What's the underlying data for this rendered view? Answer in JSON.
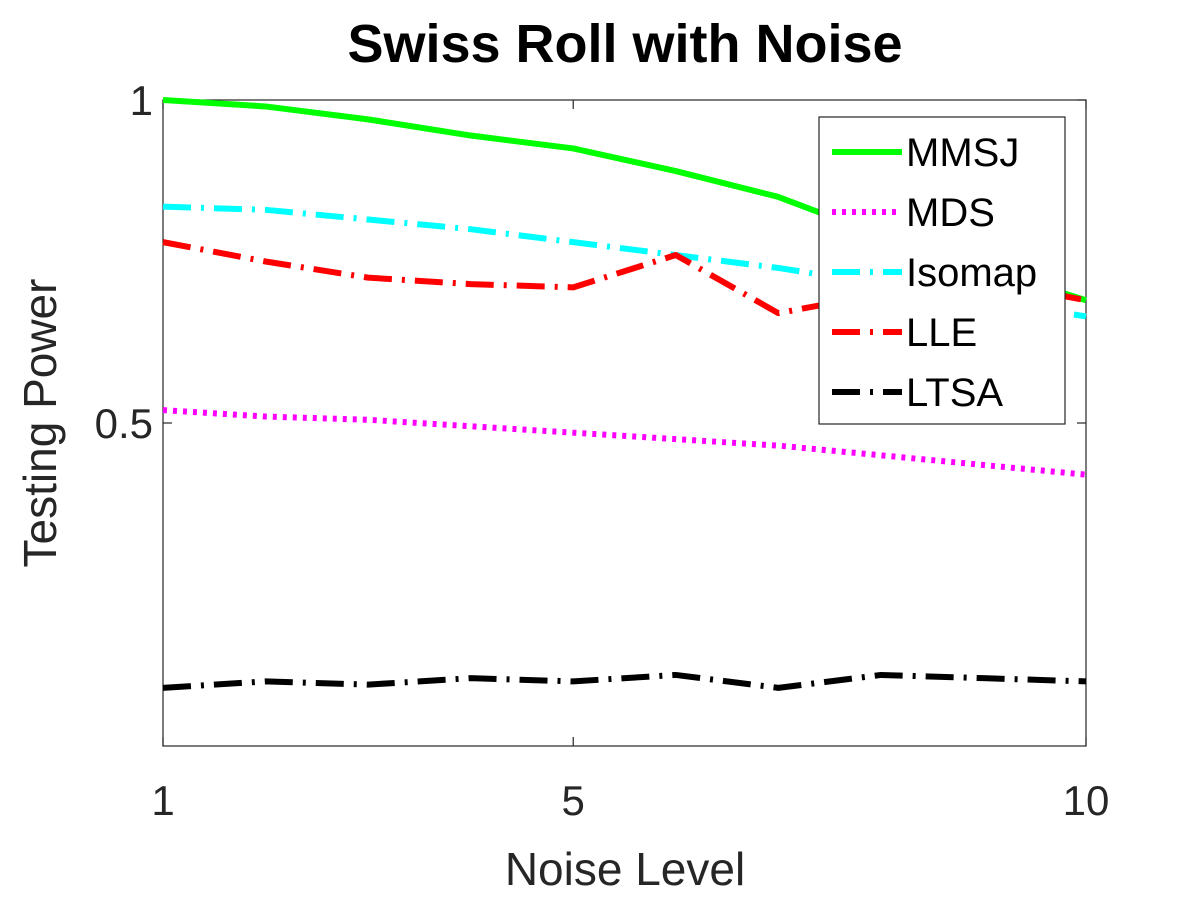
{
  "chart_data": {
    "type": "line",
    "title": "Swiss Roll with Noise",
    "xlabel": "Noise Level",
    "ylabel": "Testing Power",
    "xlim": [
      1,
      10
    ],
    "ylim": [
      0.0,
      1.0
    ],
    "xticks": [
      1,
      5,
      10
    ],
    "xtick_labels": [
      "1",
      "5",
      "10"
    ],
    "yticks": [
      0.5,
      1.0
    ],
    "ytick_labels": [
      "0.5",
      "1"
    ],
    "grid": false,
    "legend_position": "top-right",
    "x": [
      1,
      2,
      3,
      4,
      5,
      6,
      7,
      8,
      9,
      10
    ],
    "series": [
      {
        "name": "MMSJ",
        "color": "#00ff00",
        "style": "solid",
        "values": [
          1.0,
          0.99,
          0.97,
          0.945,
          0.925,
          0.89,
          0.85,
          0.79,
          0.74,
          0.69
        ]
      },
      {
        "name": "MDS",
        "color": "#ff00ff",
        "style": "dotted",
        "values": [
          0.52,
          0.51,
          0.505,
          0.495,
          0.485,
          0.475,
          0.465,
          0.45,
          0.435,
          0.42
        ]
      },
      {
        "name": "Isomap",
        "color": "#00ffff",
        "style": "dashdot",
        "values": [
          0.835,
          0.83,
          0.815,
          0.8,
          0.78,
          0.76,
          0.74,
          0.715,
          0.69,
          0.665
        ]
      },
      {
        "name": "LLE",
        "color": "#ff0000",
        "style": "dashdot",
        "values": [
          0.78,
          0.75,
          0.725,
          0.715,
          0.71,
          0.76,
          0.67,
          0.7,
          0.72,
          0.69
        ]
      },
      {
        "name": "LTSA",
        "color": "#000000",
        "style": "dashdot",
        "values": [
          0.09,
          0.1,
          0.095,
          0.105,
          0.1,
          0.11,
          0.09,
          0.11,
          0.105,
          0.1
        ]
      }
    ]
  }
}
